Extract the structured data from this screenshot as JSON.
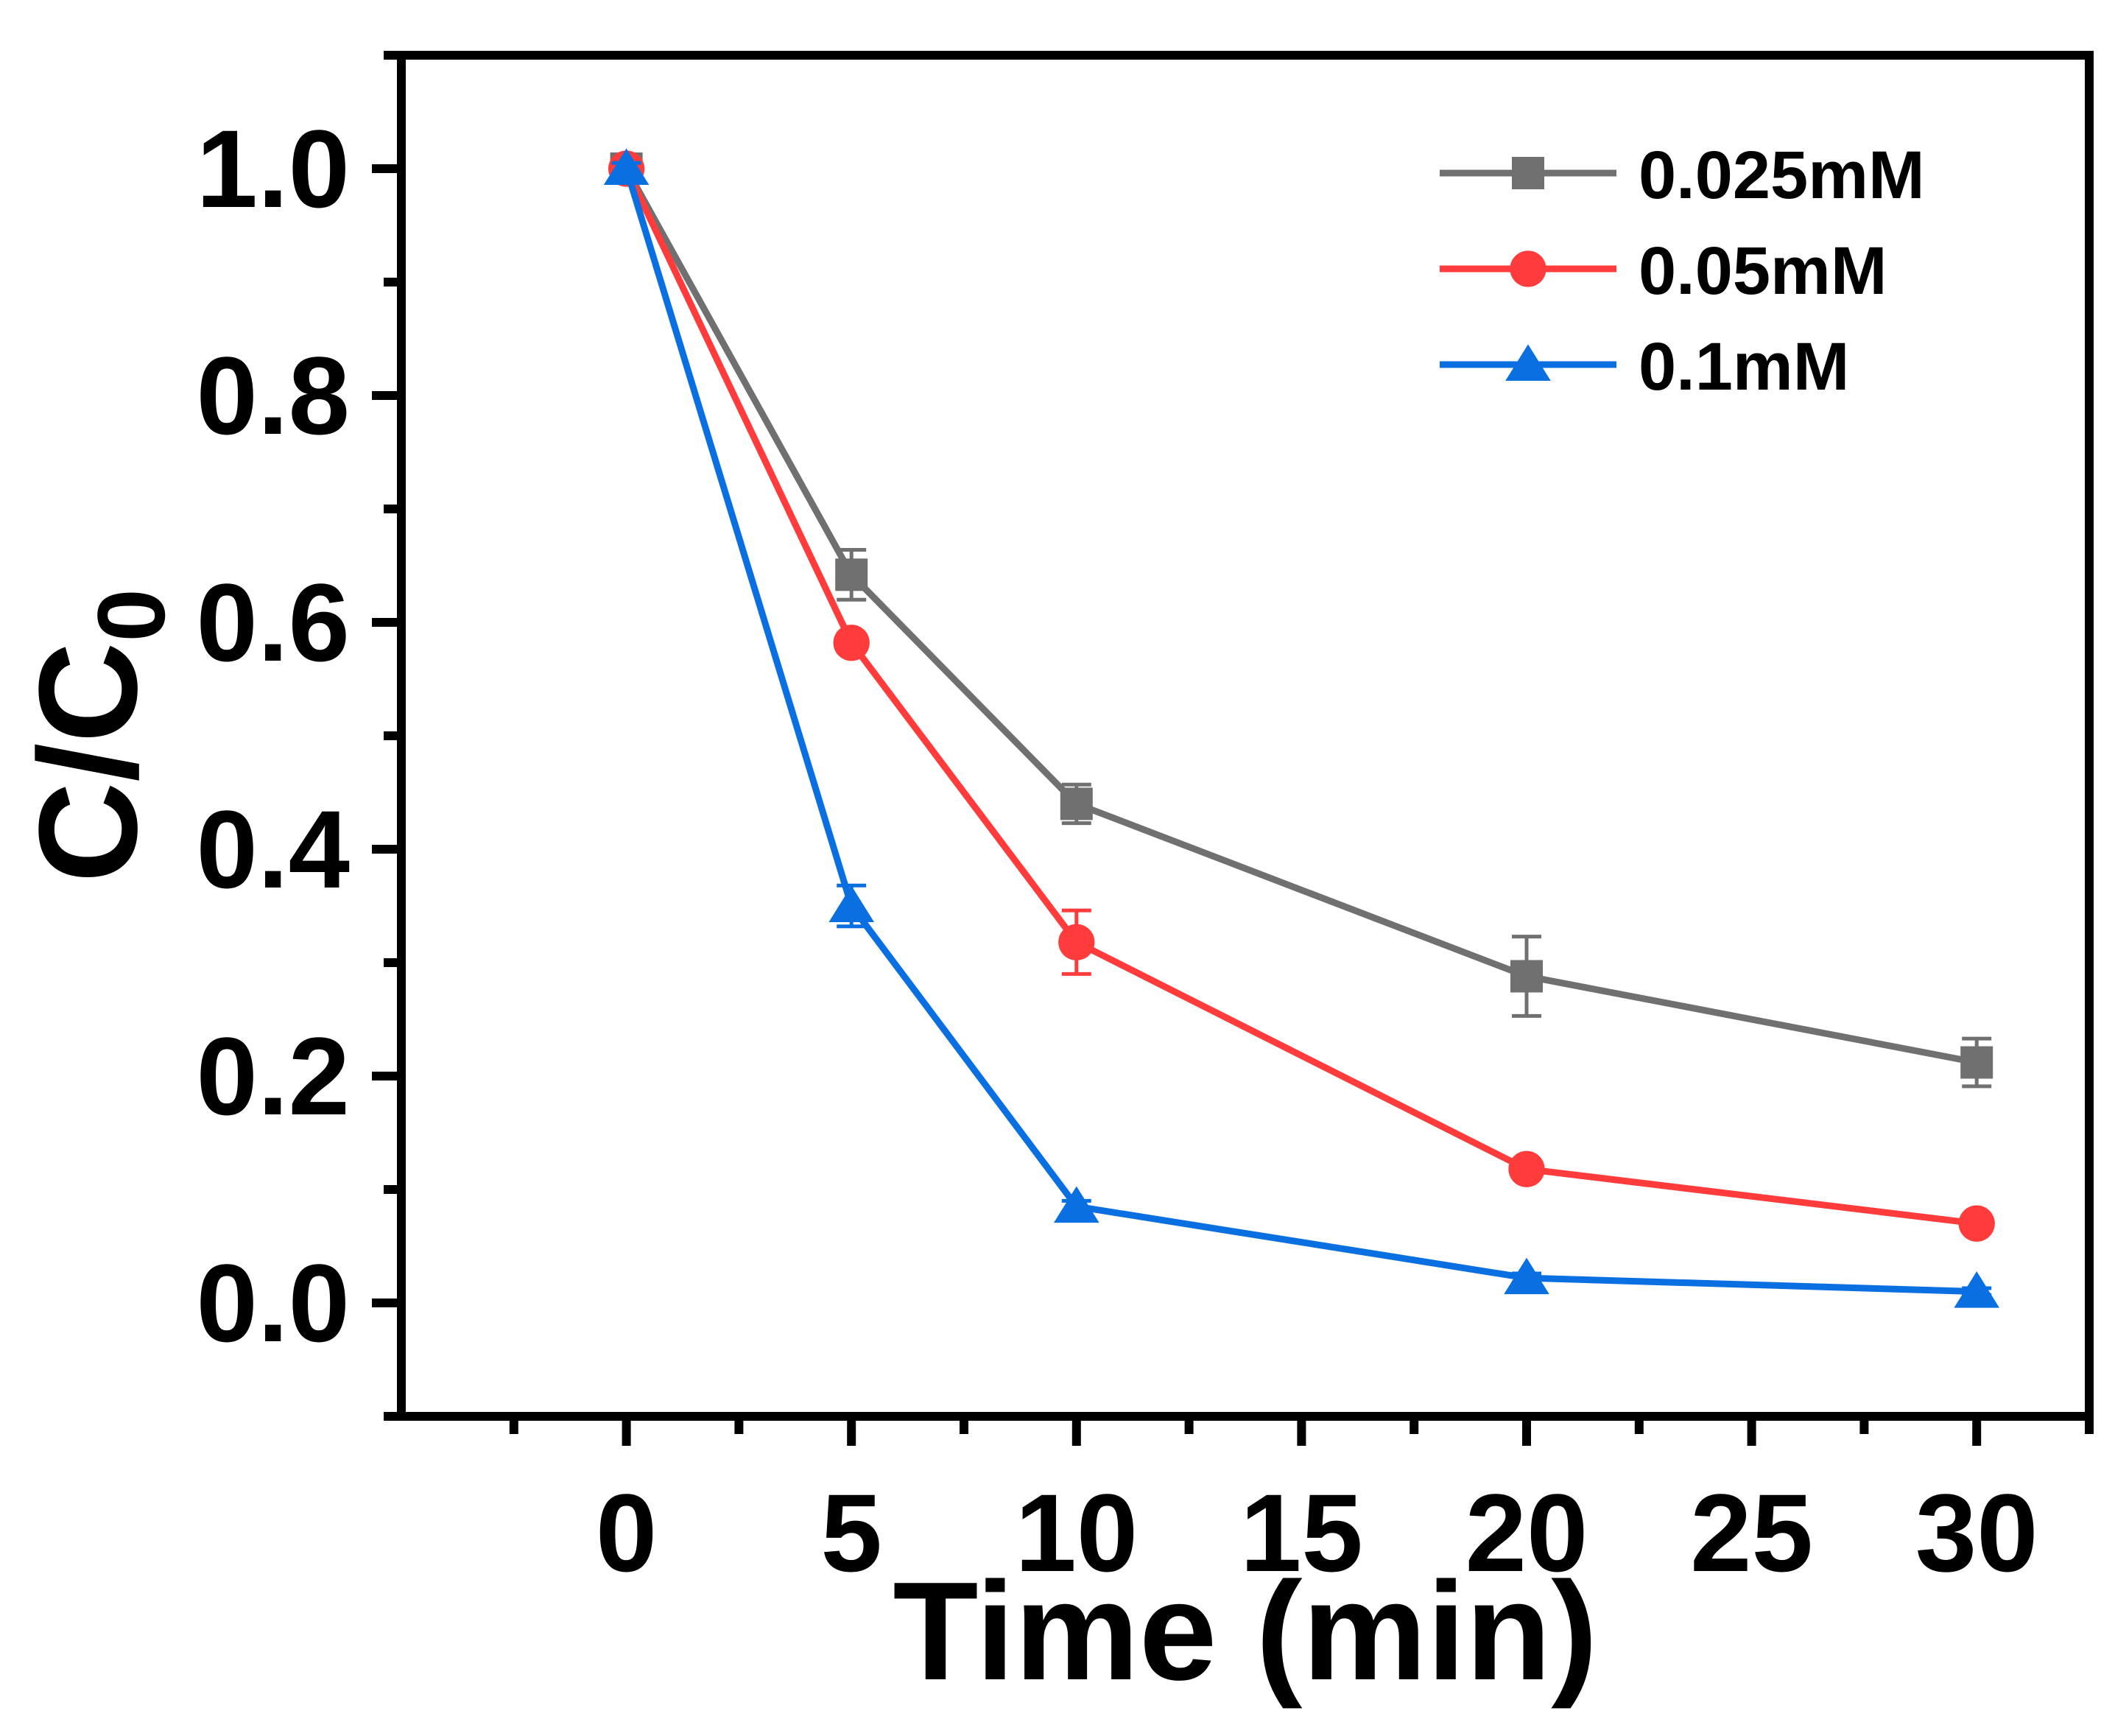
{
  "chart_data": {
    "type": "line",
    "title": "",
    "xlabel": "Time (min)",
    "ylabel": "C/C",
    "ylabel_subscript": "0",
    "xlim": [
      -5,
      32.5
    ],
    "ylim": [
      -0.1,
      1.1
    ],
    "xticks": [
      0,
      5,
      10,
      15,
      20,
      25,
      30
    ],
    "xtick_labels": [
      "0",
      "5",
      "10",
      "15",
      "20",
      "25",
      "30"
    ],
    "yticks": [
      0.0,
      0.2,
      0.4,
      0.6,
      0.8,
      1.0
    ],
    "ytick_labels": [
      "0.0",
      "0.2",
      "0.4",
      "0.6",
      "0.8",
      "1.0"
    ],
    "grid": false,
    "legend_position": "top-right",
    "x": [
      0,
      5,
      10,
      20,
      30
    ],
    "series": [
      {
        "name": "0.025mM",
        "color": "#707070",
        "marker": "square",
        "values": [
          1.0,
          0.642,
          0.44,
          0.288,
          0.212
        ],
        "errors": [
          0.005,
          0.022,
          0.017,
          0.035,
          0.021
        ]
      },
      {
        "name": "0.05mM",
        "color": "#ff3b3b",
        "marker": "circle",
        "values": [
          1.0,
          0.582,
          0.318,
          0.118,
          0.07
        ],
        "errors": [
          0.005,
          0.008,
          0.028,
          0.006,
          0.005
        ]
      },
      {
        "name": "0.1mM",
        "color": "#0a6fe0",
        "marker": "triangle",
        "values": [
          1.0,
          0.35,
          0.085,
          0.022,
          0.01
        ],
        "errors": [
          0.005,
          0.018,
          0.005,
          0.004,
          0.003
        ]
      }
    ]
  }
}
